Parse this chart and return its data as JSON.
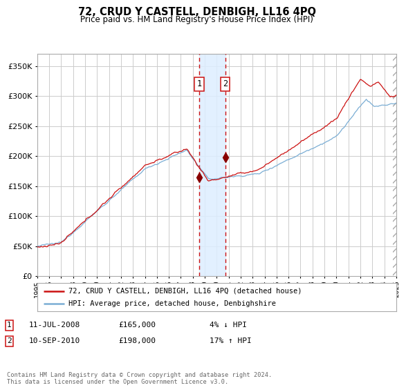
{
  "title": "72, CRUD Y CASTELL, DENBIGH, LL16 4PQ",
  "subtitle": "Price paid vs. HM Land Registry's House Price Index (HPI)",
  "legend_line1": "72, CRUD Y CASTELL, DENBIGH, LL16 4PQ (detached house)",
  "legend_line2": "HPI: Average price, detached house, Denbighshire",
  "footer": "Contains HM Land Registry data © Crown copyright and database right 2024.\nThis data is licensed under the Open Government Licence v3.0.",
  "sale1_date": "11-JUL-2008",
  "sale1_price": 165000,
  "sale1_hpi_text": "4% ↓ HPI",
  "sale2_date": "10-SEP-2010",
  "sale2_price": 198000,
  "sale2_hpi_text": "17% ↑ HPI",
  "hpi_color": "#7aadd4",
  "price_color": "#cc1111",
  "marker_color": "#880000",
  "vline_color": "#cc1111",
  "shading_color": "#ddeeff",
  "grid_color": "#cccccc",
  "bg_color": "#ffffff",
  "ylim": [
    0,
    370000
  ],
  "yticks": [
    0,
    50000,
    100000,
    150000,
    200000,
    250000,
    300000,
    350000
  ],
  "sale1_year": 2008.53,
  "sale2_year": 2010.71,
  "xmin": 1995,
  "xmax": 2025
}
